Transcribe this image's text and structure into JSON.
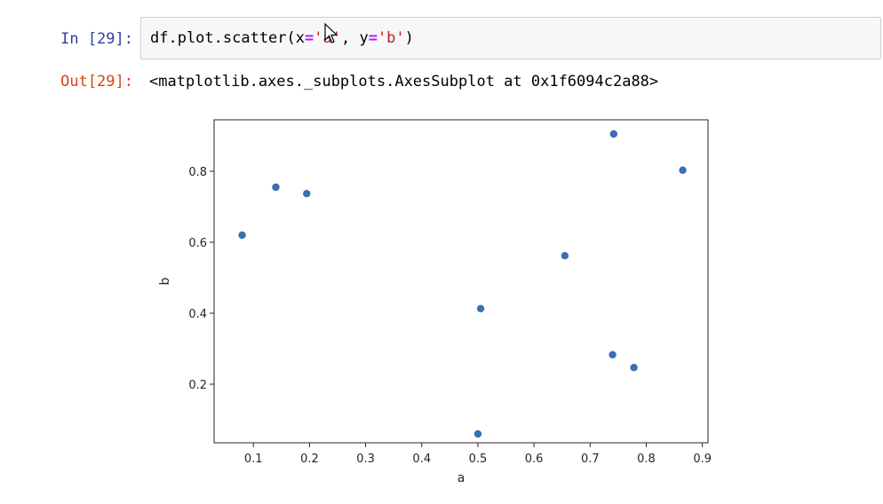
{
  "cell": {
    "in_prompt": "In [29]:",
    "code_parts": [
      "df.plot.scatter(x",
      "=",
      "'a'",
      ", y",
      "=",
      "'b'",
      ")"
    ],
    "out_prompt": "Out[29]:",
    "output_text": "<matplotlib.axes._subplots.AxesSubplot at 0x1f6094c2a88>"
  },
  "colors": {
    "marker": "#3a6fb0",
    "in_prompt": "#303f9f",
    "out_prompt": "#d84315"
  },
  "chart_data": {
    "type": "scatter",
    "title": "",
    "xlabel": "a",
    "ylabel": "b",
    "xlim": [
      0.03,
      0.91
    ],
    "ylim": [
      0.035,
      0.945
    ],
    "xticks": [
      0.1,
      0.2,
      0.3,
      0.4,
      0.5,
      0.6,
      0.7,
      0.8,
      0.9
    ],
    "xtick_labels": [
      "0.1",
      "0.2",
      "0.3",
      "0.4",
      "0.5",
      "0.6",
      "0.7",
      "0.8",
      "0.9"
    ],
    "yticks": [
      0.2,
      0.4,
      0.6,
      0.8
    ],
    "ytick_labels": [
      "0.2",
      "0.4",
      "0.6",
      "0.8"
    ],
    "grid": false,
    "points": [
      {
        "x": 0.08,
        "y": 0.62
      },
      {
        "x": 0.14,
        "y": 0.755
      },
      {
        "x": 0.195,
        "y": 0.737
      },
      {
        "x": 0.505,
        "y": 0.413
      },
      {
        "x": 0.5,
        "y": 0.06
      },
      {
        "x": 0.655,
        "y": 0.562
      },
      {
        "x": 0.742,
        "y": 0.905
      },
      {
        "x": 0.74,
        "y": 0.283
      },
      {
        "x": 0.778,
        "y": 0.247
      },
      {
        "x": 0.865,
        "y": 0.803
      }
    ]
  }
}
